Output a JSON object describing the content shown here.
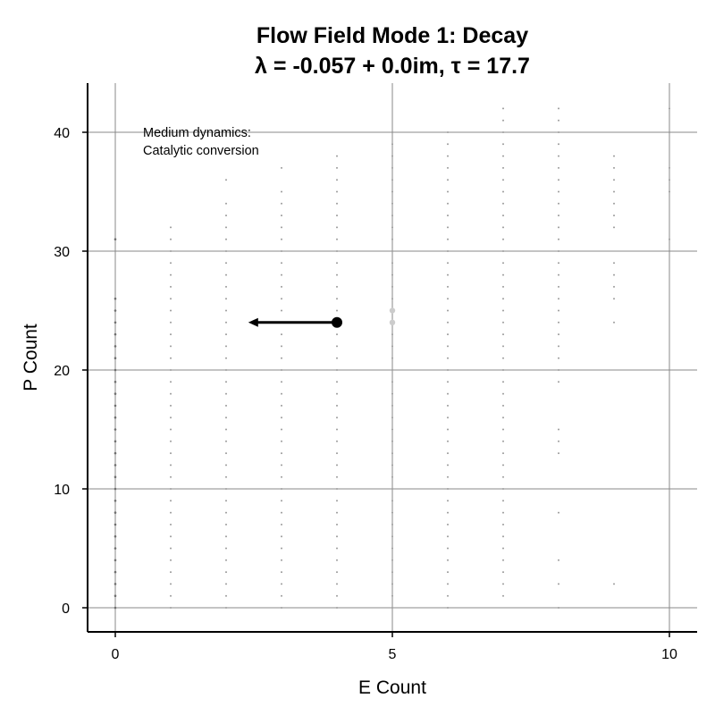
{
  "chart_data": {
    "type": "scatter",
    "title": "Flow Field Mode 1: Decay",
    "subtitle": "λ = -0.057 + 0.0im, τ = 17.7",
    "xlabel": "E Count",
    "ylabel": "P Count",
    "xlim": [
      -0.5,
      10.5
    ],
    "ylim": [
      -2,
      44
    ],
    "xticks": [
      0,
      5,
      10
    ],
    "yticks": [
      0,
      10,
      20,
      30,
      40
    ],
    "grid": true,
    "annotation": [
      "Medium dynamics:",
      "Catalytic conversion"
    ],
    "colors": {
      "points": "#9a9a9a",
      "arrow": "#000000",
      "highlight": "#cccccc",
      "grid": "#888888"
    },
    "state_points": [
      {
        "x": 0,
        "y": [
          0,
          1,
          2,
          3,
          4,
          5,
          6,
          7,
          8,
          9,
          10,
          11,
          12,
          13,
          14,
          15,
          16,
          17,
          18,
          19,
          20,
          21,
          22,
          23,
          24,
          25,
          26,
          31
        ]
      },
      {
        "x": 1,
        "y": [
          0,
          1,
          2,
          3,
          4,
          5,
          6,
          7,
          8,
          9,
          10,
          11,
          12,
          13,
          14,
          15,
          16,
          17,
          18,
          19,
          20,
          21,
          22,
          23,
          24,
          25,
          26,
          27,
          28,
          29,
          30,
          31,
          32
        ]
      },
      {
        "x": 2,
        "y": [
          0,
          1,
          2,
          3,
          4,
          5,
          6,
          7,
          8,
          9,
          10,
          11,
          12,
          13,
          14,
          15,
          16,
          17,
          18,
          19,
          20,
          21,
          22,
          23,
          24,
          25,
          26,
          27,
          28,
          29,
          30,
          31,
          32,
          33,
          34,
          36
        ]
      },
      {
        "x": 3,
        "y": [
          0,
          1,
          2,
          3,
          4,
          5,
          6,
          7,
          8,
          9,
          10,
          11,
          12,
          13,
          14,
          15,
          16,
          17,
          18,
          19,
          20,
          21,
          22,
          23,
          24,
          25,
          26,
          27,
          28,
          29,
          30,
          31,
          32,
          33,
          34,
          35,
          37
        ]
      },
      {
        "x": 4,
        "y": [
          0,
          1,
          2,
          3,
          4,
          5,
          6,
          7,
          8,
          9,
          10,
          11,
          12,
          13,
          14,
          15,
          16,
          17,
          18,
          19,
          20,
          21,
          22,
          23,
          24,
          25,
          26,
          27,
          28,
          29,
          30,
          31,
          32,
          33,
          34,
          35,
          36,
          37,
          38
        ]
      },
      {
        "x": 5,
        "y": [
          0,
          1,
          2,
          3,
          4,
          5,
          6,
          7,
          8,
          9,
          10,
          11,
          12,
          13,
          14,
          15,
          16,
          17,
          18,
          19,
          20,
          21,
          22,
          23,
          24,
          25,
          26,
          27,
          28,
          29,
          30,
          31,
          32,
          33,
          34,
          35,
          36,
          37,
          38,
          39
        ]
      },
      {
        "x": 6,
        "y": [
          0,
          1,
          2,
          3,
          4,
          5,
          6,
          7,
          8,
          9,
          10,
          11,
          12,
          13,
          14,
          15,
          16,
          17,
          18,
          19,
          20,
          21,
          22,
          23,
          24,
          25,
          26,
          27,
          28,
          29,
          30,
          31,
          32,
          33,
          34,
          35,
          36,
          37,
          38,
          39,
          40
        ]
      },
      {
        "x": 7,
        "y": [
          1,
          2,
          3,
          4,
          5,
          6,
          7,
          8,
          9,
          10,
          11,
          12,
          13,
          14,
          15,
          16,
          17,
          18,
          19,
          20,
          21,
          22,
          23,
          24,
          25,
          26,
          27,
          28,
          29,
          30,
          31,
          32,
          33,
          34,
          35,
          36,
          37,
          38,
          39,
          40,
          41,
          42
        ]
      },
      {
        "x": 8,
        "y": [
          0,
          2,
          4,
          8,
          13,
          14,
          15,
          19,
          20,
          21,
          22,
          23,
          24,
          25,
          26,
          27,
          28,
          29,
          30,
          31,
          32,
          33,
          34,
          35,
          36,
          37,
          38,
          39,
          40,
          41,
          42
        ]
      },
      {
        "x": 9,
        "y": [
          2,
          24,
          26,
          27,
          28,
          29,
          32,
          33,
          34,
          35,
          36,
          37,
          38
        ]
      },
      {
        "x": 10,
        "y": [
          31,
          35,
          36,
          37,
          42
        ]
      }
    ],
    "highlight_points": [
      {
        "x": 5,
        "y": 24
      },
      {
        "x": 5,
        "y": 25
      }
    ],
    "flow_arrow": {
      "from": {
        "x": 4,
        "y": 24
      },
      "to": {
        "x": 2.4,
        "y": 24
      }
    }
  }
}
